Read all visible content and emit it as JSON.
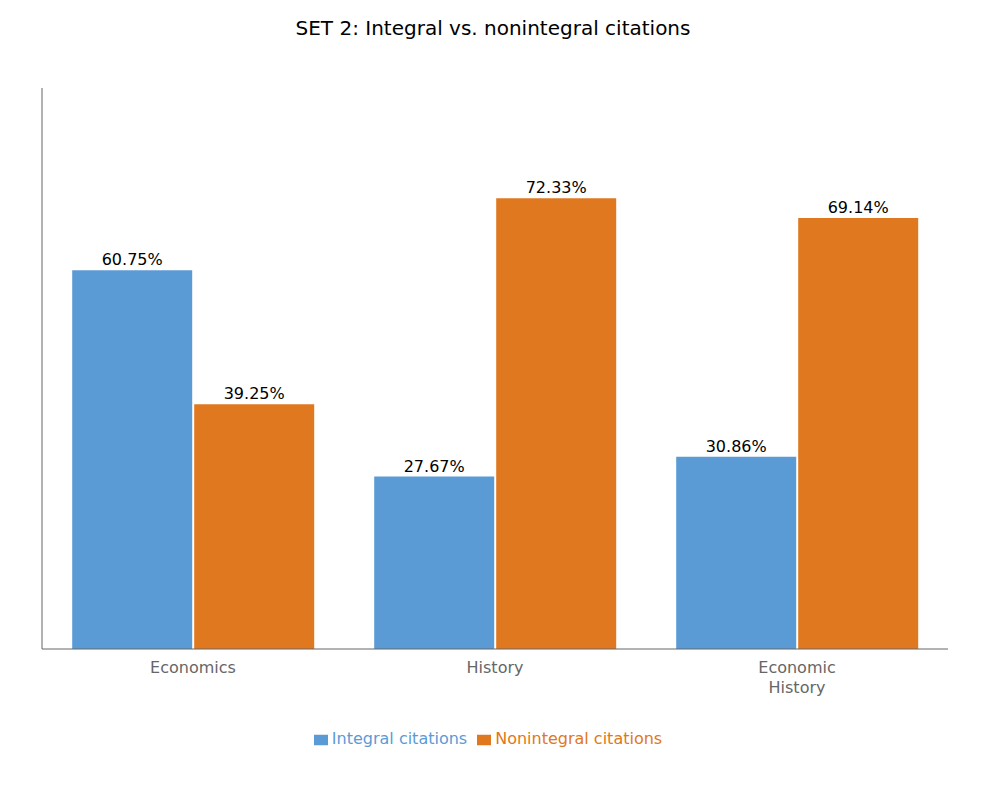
{
  "chart_data": {
    "type": "bar",
    "title": "SET 2: Integral vs. nonintegral citations",
    "categories": [
      "Economics",
      "History",
      "Economic\nHistory"
    ],
    "series": [
      {
        "name": "Integral citations",
        "color": "#5B9BD5",
        "values": [
          60.75,
          27.67,
          30.86
        ],
        "value_labels": [
          "60.75%",
          "27.67%",
          "30.86%"
        ]
      },
      {
        "name": "Nonintegral citations",
        "color": "#E07820",
        "values": [
          39.25,
          72.33,
          69.14
        ],
        "value_labels": [
          "39.25%",
          "72.33%",
          "69.14%"
        ]
      }
    ],
    "ylim": [
      0,
      90
    ],
    "grid": false,
    "legend": "bottom",
    "data_labels": true,
    "tick_labels": "x"
  }
}
